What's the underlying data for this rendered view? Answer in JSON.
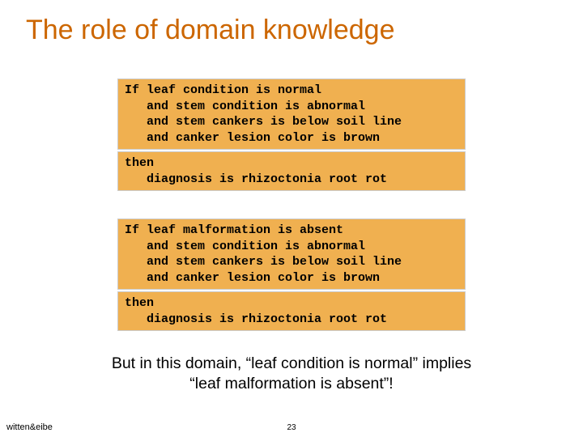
{
  "colors": {
    "title_color": "#cc6600",
    "block_bg": "#f0b050",
    "text_color": "#000000",
    "background": "#ffffff"
  },
  "typography": {
    "title_fontsize_pt": 26,
    "body_fontsize_pt": 15,
    "mono_font": "Courier New",
    "sans_font": "Arial"
  },
  "title": "The role of domain knowledge",
  "rule1_if": {
    "l1": "If leaf condition is normal",
    "l2": "   and stem condition is abnormal",
    "l3": "   and stem cankers is below soil line",
    "l4": "   and canker lesion color is brown"
  },
  "rule1_then": {
    "l1": "then",
    "l2": "   diagnosis is rhizoctonia root rot"
  },
  "rule2_if": {
    "l1": "If leaf malformation is absent",
    "l2": "   and stem condition is abnormal",
    "l3": "   and stem cankers is below soil line",
    "l4": "   and canker lesion color is brown"
  },
  "rule2_then": {
    "l1": "then",
    "l2": "   diagnosis is rhizoctonia root rot"
  },
  "bottom_line1": "But in this domain, “leaf condition is normal” implies",
  "bottom_line2": "“leaf malformation is absent”!",
  "attribution": "witten&eibe",
  "page_number": "23"
}
